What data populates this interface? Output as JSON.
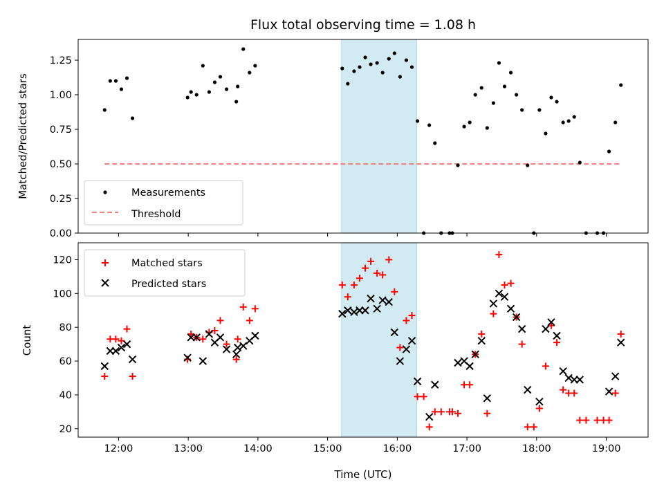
{
  "title": "Flux total observing time = 1.08 h",
  "colors": {
    "band": "#add8e6",
    "measurement": "#000000",
    "threshold": "#f08080",
    "matched": "#ff0000",
    "predicted": "#000000"
  },
  "top": {
    "ylabel": "Matched/Predicted stars",
    "ylim": [
      0,
      1.4
    ],
    "yticks": [
      "0.00",
      "0.25",
      "0.50",
      "0.75",
      "1.00",
      "1.25"
    ],
    "ytick_values": [
      0,
      0.25,
      0.5,
      0.75,
      1.0,
      1.25
    ],
    "legend": [
      "Measurements",
      "Threshold"
    ],
    "threshold": 0.5,
    "threshold_x": [
      11.8,
      19.22
    ]
  },
  "bottom": {
    "ylabel": "Count",
    "xlabel": "Time (UTC)",
    "ylim": [
      15,
      130
    ],
    "yticks": [
      "20",
      "40",
      "60",
      "80",
      "100",
      "120"
    ],
    "ytick_values": [
      20,
      40,
      60,
      80,
      100,
      120
    ],
    "legend": [
      "Matched stars",
      "Predicted stars"
    ]
  },
  "xaxis": {
    "xlim": [
      11.42,
      19.6
    ],
    "ticks": [
      "12:00",
      "13:00",
      "14:00",
      "15:00",
      "16:00",
      "17:00",
      "18:00",
      "19:00"
    ],
    "tick_values": [
      12,
      13,
      14,
      15,
      16,
      17,
      18,
      19
    ]
  },
  "chart_data": {
    "type": "scatter",
    "title": "Flux total observing time = 1.08 h",
    "xlabel": "Time (UTC)",
    "band": [
      15.2,
      16.28
    ],
    "series": [
      {
        "name": "Measurements",
        "panel": "top",
        "points": [
          [
            11.8,
            0.89
          ],
          [
            11.88,
            1.1
          ],
          [
            11.96,
            1.1
          ],
          [
            12.04,
            1.04
          ],
          [
            12.12,
            1.12
          ],
          [
            12.2,
            0.83
          ],
          [
            12.99,
            0.98
          ],
          [
            13.04,
            1.02
          ],
          [
            13.12,
            1.0
          ],
          [
            13.21,
            1.21
          ],
          [
            13.3,
            1.02
          ],
          [
            13.38,
            1.09
          ],
          [
            13.46,
            1.13
          ],
          [
            13.55,
            1.04
          ],
          [
            13.69,
            0.95
          ],
          [
            13.71,
            1.06
          ],
          [
            13.79,
            1.33
          ],
          [
            13.88,
            1.16
          ],
          [
            13.96,
            1.21
          ],
          [
            15.21,
            1.19
          ],
          [
            15.29,
            1.08
          ],
          [
            15.38,
            1.17
          ],
          [
            15.46,
            1.2
          ],
          [
            15.54,
            1.27
          ],
          [
            15.62,
            1.22
          ],
          [
            15.71,
            1.23
          ],
          [
            15.79,
            1.16
          ],
          [
            15.88,
            1.26
          ],
          [
            15.96,
            1.3
          ],
          [
            16.04,
            1.13
          ],
          [
            16.13,
            1.25
          ],
          [
            16.21,
            1.2
          ],
          [
            16.29,
            0.81
          ],
          [
            16.38,
            0.0
          ],
          [
            16.46,
            0.78
          ],
          [
            16.54,
            0.65
          ],
          [
            16.63,
            0.0
          ],
          [
            16.75,
            0.0
          ],
          [
            16.79,
            0.0
          ],
          [
            16.87,
            0.49
          ],
          [
            16.96,
            0.77
          ],
          [
            17.04,
            0.8
          ],
          [
            17.12,
            1.0
          ],
          [
            17.21,
            1.05
          ],
          [
            17.29,
            0.76
          ],
          [
            17.38,
            0.94
          ],
          [
            17.46,
            1.23
          ],
          [
            17.54,
            1.06
          ],
          [
            17.63,
            1.16
          ],
          [
            17.71,
            1.0
          ],
          [
            17.79,
            0.89
          ],
          [
            17.87,
            0.49
          ],
          [
            17.96,
            0.0
          ],
          [
            18.04,
            0.89
          ],
          [
            18.13,
            0.72
          ],
          [
            18.21,
            0.98
          ],
          [
            18.29,
            0.95
          ],
          [
            18.38,
            0.8
          ],
          [
            18.46,
            0.81
          ],
          [
            18.54,
            0.84
          ],
          [
            18.62,
            0.51
          ],
          [
            18.71,
            0.0
          ],
          [
            18.87,
            0.0
          ],
          [
            18.96,
            0.0
          ],
          [
            19.04,
            0.59
          ],
          [
            19.13,
            0.8
          ],
          [
            19.21,
            1.07
          ]
        ]
      },
      {
        "name": "Threshold",
        "panel": "top",
        "points": [
          [
            11.8,
            0.5
          ],
          [
            19.22,
            0.5
          ]
        ]
      },
      {
        "name": "Matched stars",
        "panel": "bottom",
        "points": [
          [
            11.8,
            51
          ],
          [
            11.88,
            73
          ],
          [
            11.96,
            73
          ],
          [
            12.04,
            72
          ],
          [
            12.12,
            79
          ],
          [
            12.2,
            51
          ],
          [
            12.99,
            61
          ],
          [
            13.04,
            76
          ],
          [
            13.12,
            74
          ],
          [
            13.21,
            73
          ],
          [
            13.3,
            77
          ],
          [
            13.38,
            78
          ],
          [
            13.46,
            84
          ],
          [
            13.55,
            70
          ],
          [
            13.69,
            61
          ],
          [
            13.71,
            73
          ],
          [
            13.79,
            92
          ],
          [
            13.88,
            84
          ],
          [
            13.96,
            91
          ],
          [
            15.21,
            105
          ],
          [
            15.29,
            98
          ],
          [
            15.38,
            105
          ],
          [
            15.46,
            109
          ],
          [
            15.54,
            115
          ],
          [
            15.62,
            119
          ],
          [
            15.71,
            112
          ],
          [
            15.79,
            111
          ],
          [
            15.88,
            120
          ],
          [
            15.96,
            101
          ],
          [
            16.04,
            68
          ],
          [
            16.13,
            84
          ],
          [
            16.21,
            87
          ],
          [
            16.29,
            39
          ],
          [
            16.38,
            39
          ],
          [
            16.46,
            21
          ],
          [
            16.54,
            30
          ],
          [
            16.63,
            30
          ],
          [
            16.75,
            30
          ],
          [
            16.79,
            30
          ],
          [
            16.87,
            29
          ],
          [
            16.96,
            46
          ],
          [
            17.04,
            46
          ],
          [
            17.12,
            64
          ],
          [
            17.21,
            76
          ],
          [
            17.29,
            29
          ],
          [
            17.38,
            88
          ],
          [
            17.46,
            123
          ],
          [
            17.54,
            105
          ],
          [
            17.63,
            106
          ],
          [
            17.71,
            86
          ],
          [
            17.79,
            70
          ],
          [
            17.87,
            21
          ],
          [
            17.96,
            21
          ],
          [
            18.04,
            32
          ],
          [
            18.13,
            57
          ],
          [
            18.21,
            81
          ],
          [
            18.29,
            71
          ],
          [
            18.38,
            43
          ],
          [
            18.46,
            41
          ],
          [
            18.54,
            41
          ],
          [
            18.62,
            25
          ],
          [
            18.71,
            25
          ],
          [
            18.87,
            25
          ],
          [
            18.96,
            25
          ],
          [
            19.04,
            25
          ],
          [
            19.13,
            41
          ],
          [
            19.21,
            76
          ]
        ]
      },
      {
        "name": "Predicted stars",
        "panel": "bottom",
        "points": [
          [
            11.8,
            57
          ],
          [
            11.88,
            66
          ],
          [
            11.96,
            66
          ],
          [
            12.04,
            68
          ],
          [
            12.12,
            70
          ],
          [
            12.2,
            61
          ],
          [
            12.99,
            62
          ],
          [
            13.04,
            74
          ],
          [
            13.12,
            74
          ],
          [
            13.21,
            60
          ],
          [
            13.3,
            76
          ],
          [
            13.38,
            71
          ],
          [
            13.46,
            74
          ],
          [
            13.55,
            67
          ],
          [
            13.69,
            64
          ],
          [
            13.71,
            68
          ],
          [
            13.79,
            69
          ],
          [
            13.88,
            72
          ],
          [
            13.96,
            75
          ],
          [
            15.21,
            88
          ],
          [
            15.29,
            90
          ],
          [
            15.38,
            89
          ],
          [
            15.46,
            90
          ],
          [
            15.54,
            90
          ],
          [
            15.62,
            97
          ],
          [
            15.71,
            91
          ],
          [
            15.79,
            96
          ],
          [
            15.88,
            95
          ],
          [
            15.96,
            77
          ],
          [
            16.04,
            60
          ],
          [
            16.13,
            67
          ],
          [
            16.21,
            72
          ],
          [
            16.29,
            48
          ],
          [
            16.46,
            27
          ],
          [
            16.54,
            46
          ],
          [
            16.87,
            59
          ],
          [
            16.96,
            60
          ],
          [
            17.04,
            57
          ],
          [
            17.12,
            64
          ],
          [
            17.21,
            72
          ],
          [
            17.29,
            38
          ],
          [
            17.38,
            94
          ],
          [
            17.46,
            100
          ],
          [
            17.54,
            98
          ],
          [
            17.63,
            91
          ],
          [
            17.71,
            86
          ],
          [
            17.79,
            79
          ],
          [
            17.87,
            43
          ],
          [
            18.04,
            36
          ],
          [
            18.13,
            79
          ],
          [
            18.21,
            83
          ],
          [
            18.29,
            75
          ],
          [
            18.38,
            54
          ],
          [
            18.46,
            50
          ],
          [
            18.54,
            49
          ],
          [
            18.62,
            49
          ],
          [
            19.04,
            42
          ],
          [
            19.13,
            51
          ],
          [
            19.21,
            71
          ]
        ]
      }
    ]
  }
}
